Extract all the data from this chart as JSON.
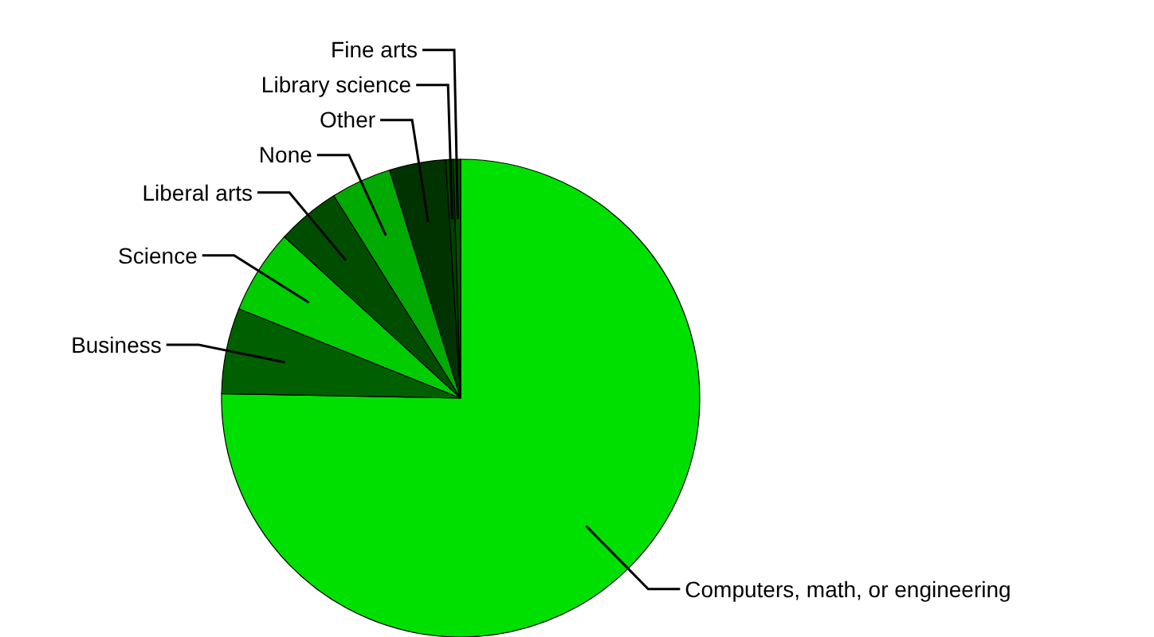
{
  "chart_data": {
    "type": "pie",
    "categories": [
      "Computers, math, or engineering",
      "Business",
      "Science",
      "Liberal arts",
      "None",
      "Other",
      "Library science",
      "Fine arts"
    ],
    "values": [
      75.3,
      5.8,
      5.7,
      4.3,
      4.1,
      3.8,
      0.5,
      0.5
    ],
    "colors": [
      "#00e000",
      "#006000",
      "#00cc00",
      "#004d00",
      "#00aa00",
      "#003300",
      "#004000",
      "#005000"
    ]
  }
}
